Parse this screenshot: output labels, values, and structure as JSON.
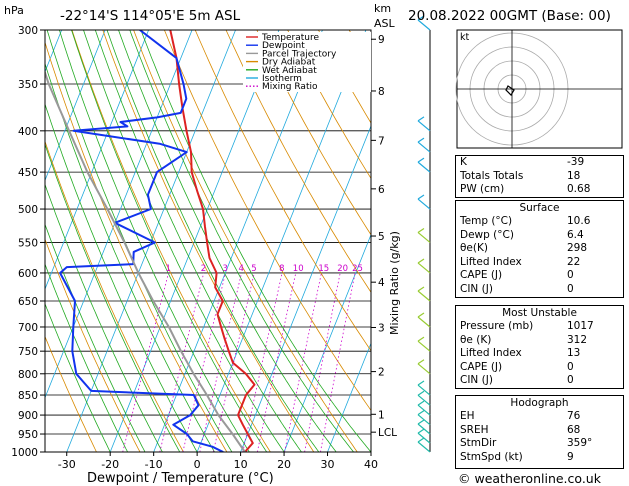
{
  "header": {
    "hpa_label": "hPa",
    "station": "-22°14'S  114°05'E  5m  ASL",
    "km_label": "km",
    "asl_label": "ASL",
    "datetime": "20.08.2022  00GMT  (Base: 00)"
  },
  "legend": [
    "Temperature",
    "Dewpoint",
    "Parcel Trajectory",
    "Dry Adiabat",
    "Wet Adiabat",
    "Isotherm",
    "Mixing Ratio"
  ],
  "legend_colors": [
    "#dd2222",
    "#1133ee",
    "#999999",
    "#d88a00",
    "#22aa22",
    "#22aadd",
    "#cc00cc"
  ],
  "xaxis_title": "Dewpoint / Temperature (°C)",
  "yaxis_right_title": "Mixing Ratio (g/kg)",
  "lcl_label": "LCL",
  "mixing_ratio_labels": [
    "1",
    "2",
    "3",
    "4",
    "5",
    "8",
    "10",
    "15",
    "20",
    "25"
  ],
  "hodograph": {
    "label": "kt"
  },
  "indices": [
    {
      "k": "K",
      "v": "-39"
    },
    {
      "k": "Totals Totals",
      "v": "18"
    },
    {
      "k": "PW (cm)",
      "v": "0.68"
    }
  ],
  "surface": {
    "title": "Surface",
    "rows": [
      {
        "k": "Temp (°C)",
        "v": "10.6"
      },
      {
        "k": "Dewp (°C)",
        "v": "6.4"
      },
      {
        "k": "θe(K)",
        "v": "298"
      },
      {
        "k": "Lifted Index",
        "v": "22"
      },
      {
        "k": "CAPE (J)",
        "v": "0"
      },
      {
        "k": "CIN (J)",
        "v": "0"
      }
    ]
  },
  "most_unstable": {
    "title": "Most Unstable",
    "rows": [
      {
        "k": "Pressure (mb)",
        "v": "1017"
      },
      {
        "k": "θe (K)",
        "v": "312"
      },
      {
        "k": "Lifted Index",
        "v": "13"
      },
      {
        "k": "CAPE (J)",
        "v": "0"
      },
      {
        "k": "CIN (J)",
        "v": "0"
      }
    ]
  },
  "hodograph_table": {
    "title": "Hodograph",
    "rows": [
      {
        "k": "EH",
        "v": "76"
      },
      {
        "k": "SREH",
        "v": "68"
      },
      {
        "k": "StmDir",
        "v": "359°"
      },
      {
        "k": "StmSpd (kt)",
        "v": "9"
      }
    ]
  },
  "copyright": "© weatheronline.co.uk",
  "chart_data": {
    "type": "line",
    "title": "-22°14'S  114°05'E  5m  ASL",
    "xlabel": "Dewpoint / Temperature (°C)",
    "ylabel": "hPa",
    "xlim": [
      -35,
      40
    ],
    "ylim": [
      1000,
      300
    ],
    "x_ticks": [
      -30,
      -20,
      -10,
      0,
      10,
      20,
      30,
      40
    ],
    "pressure_ticks": [
      300,
      350,
      400,
      450,
      500,
      550,
      600,
      650,
      700,
      750,
      800,
      850,
      900,
      950,
      1000
    ],
    "km_ticks": [
      {
        "label": "9",
        "p": 308
      },
      {
        "label": "8",
        "p": 357
      },
      {
        "label": "7",
        "p": 411
      },
      {
        "label": "6",
        "p": 472
      },
      {
        "label": "5",
        "p": 540
      },
      {
        "label": "4",
        "p": 616
      },
      {
        "label": "3",
        "p": 701
      },
      {
        "label": "2",
        "p": 795
      },
      {
        "label": "1",
        "p": 898
      },
      {
        "label": "LCL",
        "p": 945
      }
    ],
    "series": [
      {
        "name": "Temperature",
        "p": [
          1000,
          975,
          950,
          925,
          900,
          875,
          850,
          825,
          800,
          775,
          750,
          725,
          700,
          675,
          650,
          625,
          600,
          575,
          550,
          525,
          500,
          475,
          450,
          425,
          400,
          375,
          350,
          325,
          300
        ],
        "t": [
          11,
          12,
          10,
          8,
          6,
          6,
          6,
          7,
          4,
          0,
          -2,
          -4,
          -6,
          -8,
          -8,
          -11,
          -12,
          -15,
          -17,
          -19,
          -21,
          -24,
          -27,
          -29,
          -32,
          -35,
          -38,
          -41,
          -45
        ]
      },
      {
        "name": "Dewpoint",
        "p": [
          1000,
          985,
          970,
          950,
          925,
          900,
          875,
          850,
          840,
          800,
          750,
          700,
          650,
          600,
          590,
          585,
          565,
          550,
          520,
          500,
          480,
          450,
          425,
          415,
          400,
          395,
          390,
          385,
          380,
          365,
          350,
          325,
          300
        ],
        "t": [
          6,
          3,
          -2,
          -4,
          -8,
          -5,
          -4,
          -6,
          -30,
          -35,
          -38,
          -40,
          -42,
          -48,
          -47,
          -32,
          -33,
          -29,
          -40,
          -33,
          -35,
          -35,
          -30,
          -37,
          -58,
          -46,
          -48,
          -40,
          -35,
          -35,
          -37,
          -41,
          -52
        ]
      },
      {
        "name": "Parcel Trajectory",
        "p": [
          1000,
          950,
          900,
          850,
          800,
          750,
          700,
          650,
          600,
          550,
          500,
          450,
          400,
          350,
          300
        ],
        "t": [
          11,
          6.5,
          1.5,
          -3,
          -8,
          -13,
          -18,
          -24,
          -30,
          -36,
          -43,
          -51,
          -59,
          -68,
          -77
        ]
      }
    ]
  }
}
